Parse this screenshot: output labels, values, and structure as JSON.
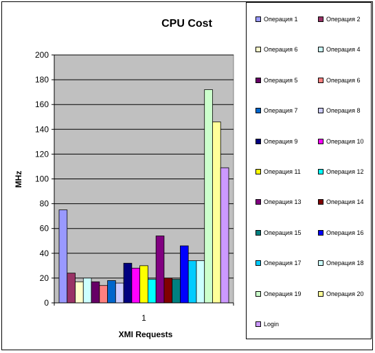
{
  "chart_data": {
    "type": "bar",
    "title": "CPU Cost",
    "xlabel": "XMI Requests",
    "ylabel": "MHz",
    "categories": [
      "1"
    ],
    "ylim": [
      0,
      200
    ],
    "yticks": [
      0,
      20,
      40,
      60,
      80,
      100,
      120,
      140,
      160,
      180,
      200
    ],
    "grid": true,
    "legend_position": "right",
    "plot_background": "#C0C0C0",
    "series": [
      {
        "name": "Операция 1",
        "values": [
          75
        ],
        "color": "#9999FF"
      },
      {
        "name": "Операция 2",
        "values": [
          24
        ],
        "color": "#993366"
      },
      {
        "name": "Операция 6",
        "values": [
          17
        ],
        "color": "#FFFFCC"
      },
      {
        "name": "Операция 4",
        "values": [
          20
        ],
        "color": "#CCFFFF"
      },
      {
        "name": "Операция 5",
        "values": [
          17
        ],
        "color": "#660066"
      },
      {
        "name": "Операция 6",
        "values": [
          14
        ],
        "color": "#FF8080"
      },
      {
        "name": "Операция 7",
        "values": [
          18
        ],
        "color": "#0066CC"
      },
      {
        "name": "Операция 8",
        "values": [
          16
        ],
        "color": "#CCCCFF"
      },
      {
        "name": "Операция 9",
        "values": [
          32
        ],
        "color": "#000080"
      },
      {
        "name": "Операция 10",
        "values": [
          28
        ],
        "color": "#FF00FF"
      },
      {
        "name": "Операция 11",
        "values": [
          30
        ],
        "color": "#FFFF00"
      },
      {
        "name": "Операция 12",
        "values": [
          19
        ],
        "color": "#00FFFF"
      },
      {
        "name": "Операция 13",
        "values": [
          54
        ],
        "color": "#800080"
      },
      {
        "name": "Операция 14",
        "values": [
          20
        ],
        "color": "#800000"
      },
      {
        "name": "Операция 15",
        "values": [
          19
        ],
        "color": "#008080"
      },
      {
        "name": "Операция 16",
        "values": [
          46
        ],
        "color": "#0000FF"
      },
      {
        "name": "Операция 17",
        "values": [
          34
        ],
        "color": "#00CCFF"
      },
      {
        "name": "Операция 18",
        "values": [
          34
        ],
        "color": "#CCFFFF"
      },
      {
        "name": "Операция 19",
        "values": [
          172
        ],
        "color": "#CCFFCC"
      },
      {
        "name": "Операция 20",
        "values": [
          146
        ],
        "color": "#FFFF99"
      },
      {
        "name": "Login",
        "values": [
          109
        ],
        "color": "#CC99FF"
      }
    ]
  }
}
